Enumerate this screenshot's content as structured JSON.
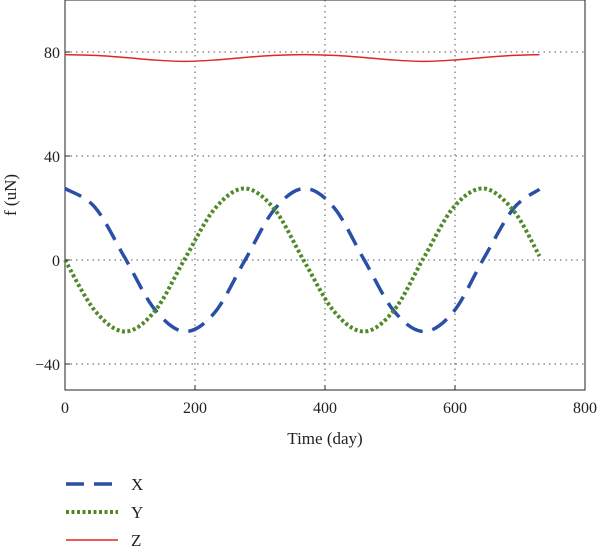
{
  "chart_data": {
    "type": "line",
    "xlabel": "Time (day)",
    "ylabel": "f (uN)",
    "xlim": [
      0,
      800
    ],
    "ylim": [
      -50,
      100
    ],
    "xticks": [
      0,
      200,
      400,
      600,
      800
    ],
    "yticks": [
      -40,
      0,
      40,
      80
    ],
    "xtick_labels": [
      "0",
      "200",
      "400",
      "600",
      "800"
    ],
    "ytick_labels": [
      "−40",
      "0",
      "40",
      "80"
    ],
    "grid": true,
    "legend_position": "below-left",
    "series": [
      {
        "name": "X",
        "color": "#2a4fa6",
        "dash": "dashed",
        "x": [
          0,
          46,
          92,
          138,
          184,
          230,
          276,
          322,
          368,
          414,
          460,
          506,
          552,
          598,
          644,
          690,
          730
        ],
        "y": [
          27.5,
          20.3,
          0.9,
          -19.0,
          -27.5,
          -20.3,
          -0.5,
          19.4,
          27.5,
          20.1,
          0.2,
          -19.6,
          -27.5,
          -19.8,
          0.5,
          19.8,
          27.2
        ]
      },
      {
        "name": "Y",
        "color": "#4f8a2a",
        "dash": "dotted",
        "x": [
          0,
          46,
          92,
          138,
          184,
          230,
          276,
          322,
          368,
          414,
          460,
          506,
          552,
          598,
          644,
          690,
          730
        ],
        "y": [
          0,
          -19.5,
          -27.5,
          -19.7,
          0.3,
          19.6,
          27.5,
          19.6,
          -0.5,
          -19.8,
          -27.5,
          -19.4,
          0.9,
          20.3,
          27.5,
          19.0,
          1.5
        ]
      },
      {
        "name": "Z",
        "color": "#e0262b",
        "dash": "solid",
        "x": [
          0,
          46,
          92,
          138,
          184,
          230,
          276,
          322,
          368,
          414,
          460,
          506,
          552,
          598,
          644,
          690,
          730
        ],
        "y": [
          79.0,
          78.7,
          77.9,
          76.9,
          76.4,
          76.9,
          77.9,
          78.7,
          79.0,
          78.7,
          77.9,
          76.9,
          76.4,
          76.9,
          77.9,
          78.7,
          79.0
        ]
      }
    ]
  }
}
